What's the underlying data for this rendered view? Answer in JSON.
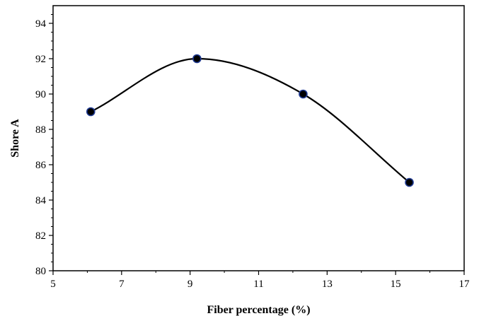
{
  "chart_data": {
    "type": "line",
    "title": "",
    "xlabel": "Fiber percentage (%)",
    "ylabel": "Shore A",
    "xlim": [
      5,
      17
    ],
    "ylim": [
      80,
      95
    ],
    "xticks": [
      5,
      7,
      9,
      11,
      13,
      15,
      17
    ],
    "yticks": [
      80,
      82,
      84,
      86,
      88,
      90,
      92,
      94
    ],
    "smooth": true,
    "grid": false,
    "legend": "none",
    "series": [
      {
        "x": [
          6.1,
          9.2,
          12.3,
          15.4
        ],
        "y": [
          89,
          92,
          90,
          85
        ],
        "line_color": "#000000",
        "marker_color": "#000000",
        "marker_edge_color": "#1f3a93"
      }
    ]
  }
}
